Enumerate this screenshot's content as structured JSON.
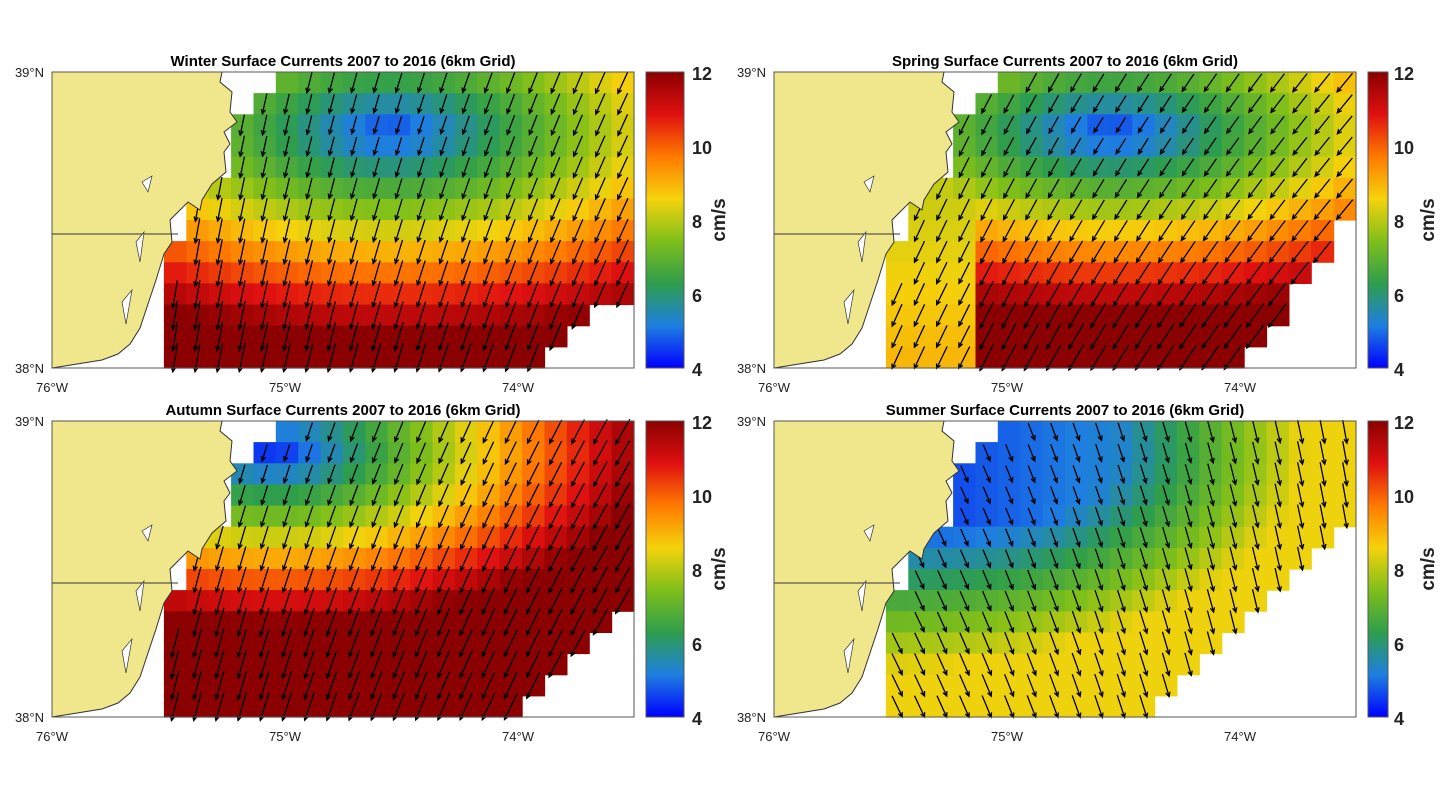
{
  "colors": {
    "land": "#f0e68c",
    "coast": "#333333",
    "arrow": "#000000",
    "colormap": [
      "#0000ff",
      "#1e7fe0",
      "#2e9e4c",
      "#7fbf1a",
      "#f5d30c",
      "#ff7a00",
      "#e01010",
      "#8b0000"
    ]
  },
  "colorbar": {
    "ticks": [
      "12",
      "10",
      "8",
      "6",
      "4"
    ],
    "min": 4,
    "max": 12,
    "unit_label": "cm/s"
  },
  "axes": {
    "lat_ticks": [
      "39°N",
      "38°N"
    ],
    "lon_ticks": [
      "76°W",
      "75°W",
      "74°W"
    ]
  },
  "panels": [
    {
      "id": "winter",
      "title": "Winter Surface Currents 2007 to 2016 (6km Grid)",
      "field": "a",
      "mean_direction_deg": 195,
      "speed_range": [
        5,
        12
      ]
    },
    {
      "id": "spring",
      "title": "Spring Surface Currents 2007 to 2016 (6km Grid)",
      "field": "b",
      "mean_direction_deg": 210,
      "speed_range": [
        4,
        12
      ]
    },
    {
      "id": "autumn",
      "title": "Autumn Surface Currents 2007 to 2016 (6km Grid)",
      "field": "c",
      "mean_direction_deg": 200,
      "speed_range": [
        4,
        12
      ]
    },
    {
      "id": "summer",
      "title": "Summer Surface Currents 2007 to 2016 (6km Grid)",
      "field": "d",
      "mean_direction_deg": 160,
      "speed_range": [
        4,
        8
      ]
    }
  ]
}
